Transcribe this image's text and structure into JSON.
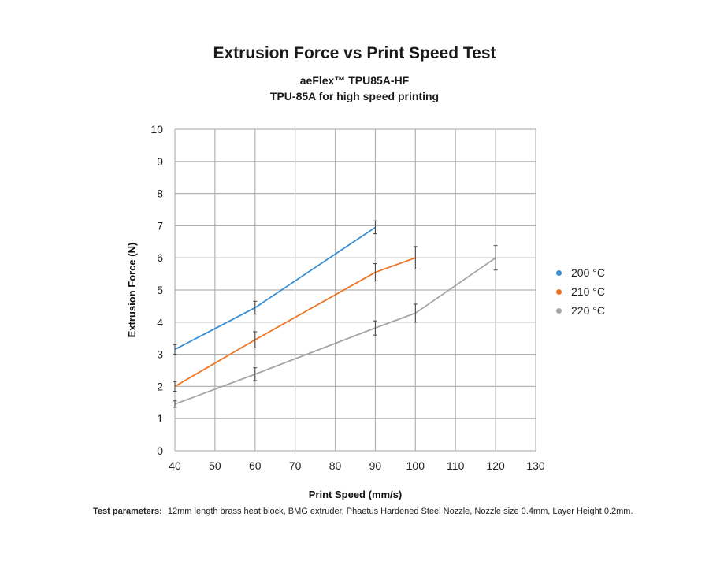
{
  "header": {
    "title": "Extrusion Force vs Print Speed Test",
    "subtitle_line1": "aeFlex™ TPU85A-HF",
    "subtitle_line2": "TPU-85A for high speed printing"
  },
  "footnote": {
    "label": "Test parameters:",
    "text": "12mm length brass heat block, BMG extruder, Phaetus Hardened Steel Nozzle, Nozzle size 0.4mm, Layer Height 0.2mm."
  },
  "chart_data": {
    "type": "line",
    "title": "Extrusion Force vs Print Speed Test",
    "xlabel": "Print Speed (mm/s)",
    "ylabel": "Extrusion Force (N)",
    "xlim": [
      40,
      130
    ],
    "ylim": [
      0,
      10
    ],
    "xticks": [
      40,
      50,
      60,
      70,
      80,
      90,
      100,
      110,
      120,
      130
    ],
    "yticks": [
      0,
      1,
      2,
      3,
      4,
      5,
      6,
      7,
      8,
      9,
      10
    ],
    "grid": true,
    "legend_position": "right",
    "series": [
      {
        "name": "200 °C",
        "color": "#3a8fd4",
        "x": [
          40,
          60,
          90
        ],
        "y": [
          3.15,
          4.45,
          6.95
        ],
        "error": [
          0.15,
          0.2,
          0.2
        ]
      },
      {
        "name": "210 °C",
        "color": "#ee7424",
        "x": [
          40,
          60,
          90,
          100
        ],
        "y": [
          2.0,
          3.45,
          5.55,
          6.0
        ],
        "error": [
          0.15,
          0.25,
          0.27,
          0.35
        ]
      },
      {
        "name": "220 °C",
        "color": "#a6a6a6",
        "x": [
          40,
          60,
          90,
          100,
          120
        ],
        "y": [
          1.45,
          2.38,
          3.82,
          4.28,
          6.0
        ],
        "error": [
          0.1,
          0.2,
          0.22,
          0.28,
          0.38
        ]
      }
    ]
  }
}
